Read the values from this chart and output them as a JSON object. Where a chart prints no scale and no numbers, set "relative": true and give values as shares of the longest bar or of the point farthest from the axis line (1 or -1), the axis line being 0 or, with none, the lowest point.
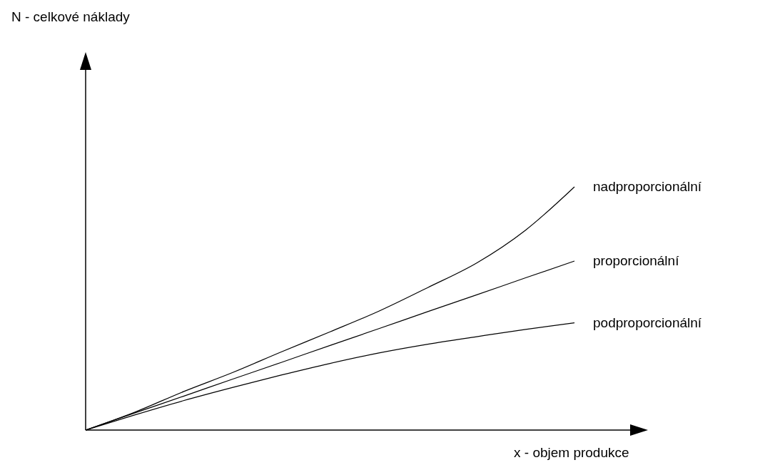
{
  "chart_data": {
    "type": "line",
    "relative": true,
    "xlabel": "x - objem produkce",
    "annotations": [
      "N - celkové náklady"
    ],
    "categories": [
      null,
      null,
      null,
      null,
      null,
      null,
      null,
      null,
      null,
      null,
      null
    ],
    "series": [
      {
        "name": "nadproporcionální",
        "color": "#000000",
        "values": [
          0,
          0.073,
          0.158,
          0.236,
          0.321,
          0.404,
          0.489,
          0.586,
          0.687,
          0.822,
          1
        ]
      },
      {
        "name": "proporcionální",
        "color": "#000000",
        "values": [
          0,
          0.07,
          0.139,
          0.209,
          0.278,
          0.348,
          0.417,
          0.487,
          0.556,
          0.626,
          0.695
        ]
      },
      {
        "name": "podproporcionální",
        "color": "#000000",
        "values": [
          0,
          0.062,
          0.121,
          0.175,
          0.226,
          0.274,
          0.317,
          0.353,
          0.384,
          0.414,
          0.441
        ]
      }
    ]
  }
}
